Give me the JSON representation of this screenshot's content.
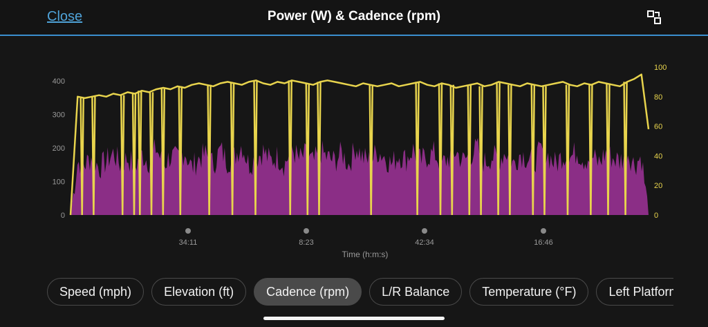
{
  "header": {
    "close_label": "Close",
    "title": "Power (W) & Cadence (rpm)",
    "expand_icon": "expand-icon"
  },
  "colors": {
    "background": "#161616",
    "header_border": "#3b8fd0",
    "link": "#4fa3d9",
    "power_fill": "#a0329a",
    "cadence_line": "#e8d44d",
    "pill_active": "#4a4a4a"
  },
  "chart_data": {
    "type": "line",
    "xlabel": "Time (h:m:s)",
    "x_tick_labels": [
      "34:11",
      "8:23",
      "42:34",
      "16:46"
    ],
    "y_left_ticks": [
      0,
      100,
      200,
      300,
      400
    ],
    "y_right_ticks": [
      0,
      20,
      40,
      60,
      80,
      100
    ],
    "y_left_range": [
      0,
      400
    ],
    "y_right_range": [
      0,
      100
    ],
    "grid": false,
    "series": [],
    "power_profile": [
      0,
      160,
      150,
      175,
      140,
      160,
      185,
      150,
      170,
      145,
      180,
      160,
      200,
      150,
      175,
      165,
      190,
      140,
      170,
      180,
      150,
      195,
      160,
      175,
      210,
      150,
      170,
      190,
      160,
      175,
      150,
      200,
      165,
      180,
      155,
      190,
      170,
      160,
      185,
      150,
      205,
      170,
      160,
      190,
      175,
      150,
      180,
      165,
      195,
      160,
      175,
      185,
      150,
      170,
      190,
      160,
      180,
      200,
      155,
      175,
      165,
      190,
      150,
      185,
      170,
      160,
      195,
      175,
      150,
      180,
      170,
      190,
      165,
      175,
      155,
      185,
      170,
      160,
      190,
      150,
      175,
      0
    ],
    "cadence_profile": [
      0,
      80,
      79,
      80,
      81,
      80,
      82,
      81,
      83,
      82,
      84,
      83,
      85,
      86,
      85,
      87,
      86,
      88,
      89,
      88,
      87,
      89,
      90,
      89,
      88,
      90,
      91,
      89,
      88,
      90,
      89,
      91,
      90,
      89,
      88,
      90,
      91,
      90,
      89,
      88,
      87,
      89,
      88,
      87,
      88,
      89,
      87,
      88,
      89,
      90,
      88,
      87,
      89,
      88,
      86,
      87,
      88,
      89,
      87,
      88,
      90,
      89,
      88,
      87,
      89,
      88,
      87,
      88,
      89,
      90,
      88,
      87,
      89,
      88,
      90,
      89,
      88,
      87,
      90,
      92,
      95,
      58
    ],
    "cadence_drops": [
      0.02,
      0.04,
      0.09,
      0.11,
      0.12,
      0.14,
      0.16,
      0.19,
      0.24,
      0.28,
      0.32,
      0.38,
      0.41,
      0.43,
      0.52,
      0.6,
      0.64,
      0.66,
      0.69,
      0.71,
      0.74,
      0.76,
      0.8,
      0.82,
      0.86,
      0.9,
      0.93,
      0.96
    ]
  },
  "metric_pills": [
    {
      "label": "Speed (mph)",
      "active": false
    },
    {
      "label": "Elevation (ft)",
      "active": false
    },
    {
      "label": "Cadence (rpm)",
      "active": true
    },
    {
      "label": "L/R Balance",
      "active": false
    },
    {
      "label": "Temperature (°F)",
      "active": false
    },
    {
      "label": "Left Platform Center Offset",
      "active": false
    }
  ]
}
